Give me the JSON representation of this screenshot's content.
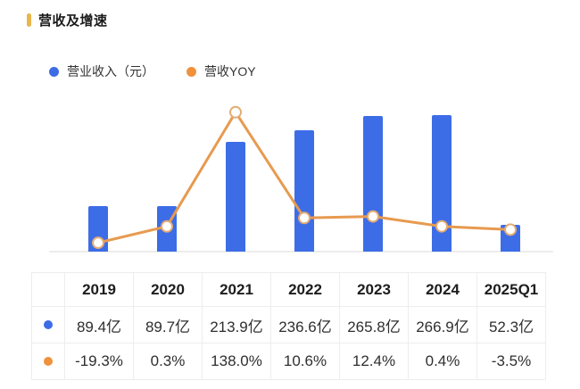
{
  "header": {
    "title": "营收及增速",
    "marker_color": "#E8B64A"
  },
  "legend": {
    "items": [
      {
        "label": "营业收入（元）",
        "color": "#3D6CE7"
      },
      {
        "label": "营收YOY",
        "color": "#F0913C"
      }
    ]
  },
  "chart_data": {
    "type": "bar",
    "subtype": "bar-line-combo",
    "title": "营收及增速",
    "xlabel": "",
    "ylabel": "",
    "grid": false,
    "legend_position": "top",
    "axis_line_color": "#ECECEC",
    "categories": [
      "2019",
      "2020",
      "2021",
      "2022",
      "2023",
      "2024",
      "2025Q1"
    ],
    "series": [
      {
        "name": "营业收入（元）",
        "type": "bar",
        "unit": "亿",
        "color": "#3D6CE7",
        "ylim": [
          0,
          300
        ],
        "values": [
          89.4,
          89.7,
          213.9,
          236.6,
          265.8,
          266.9,
          52.3
        ]
      },
      {
        "name": "营收YOY",
        "type": "line",
        "unit": "%",
        "color": "#E79A4F",
        "marker_color": "#E3AC74",
        "marker_fill": "#FFFFFF",
        "ylim": [
          -30,
          155
        ],
        "values": [
          -19.3,
          0.3,
          138.0,
          10.6,
          12.4,
          0.4,
          -3.5
        ]
      }
    ]
  },
  "table": {
    "border_color": "#EDEDED",
    "columns": [
      "2019",
      "2020",
      "2021",
      "2022",
      "2023",
      "2024",
      "2025Q1"
    ],
    "rows": [
      {
        "name": "营业收入（元）",
        "marker_color": "#3D6CE7",
        "cells": [
          "89.4亿",
          "89.7亿",
          "213.9亿",
          "236.6亿",
          "265.8亿",
          "266.9亿",
          "52.3亿"
        ]
      },
      {
        "name": "营收YOY",
        "marker_color": "#F0913C",
        "cells": [
          "-19.3%",
          "0.3%",
          "138.0%",
          "10.6%",
          "12.4%",
          "0.4%",
          "-3.5%"
        ]
      }
    ]
  }
}
